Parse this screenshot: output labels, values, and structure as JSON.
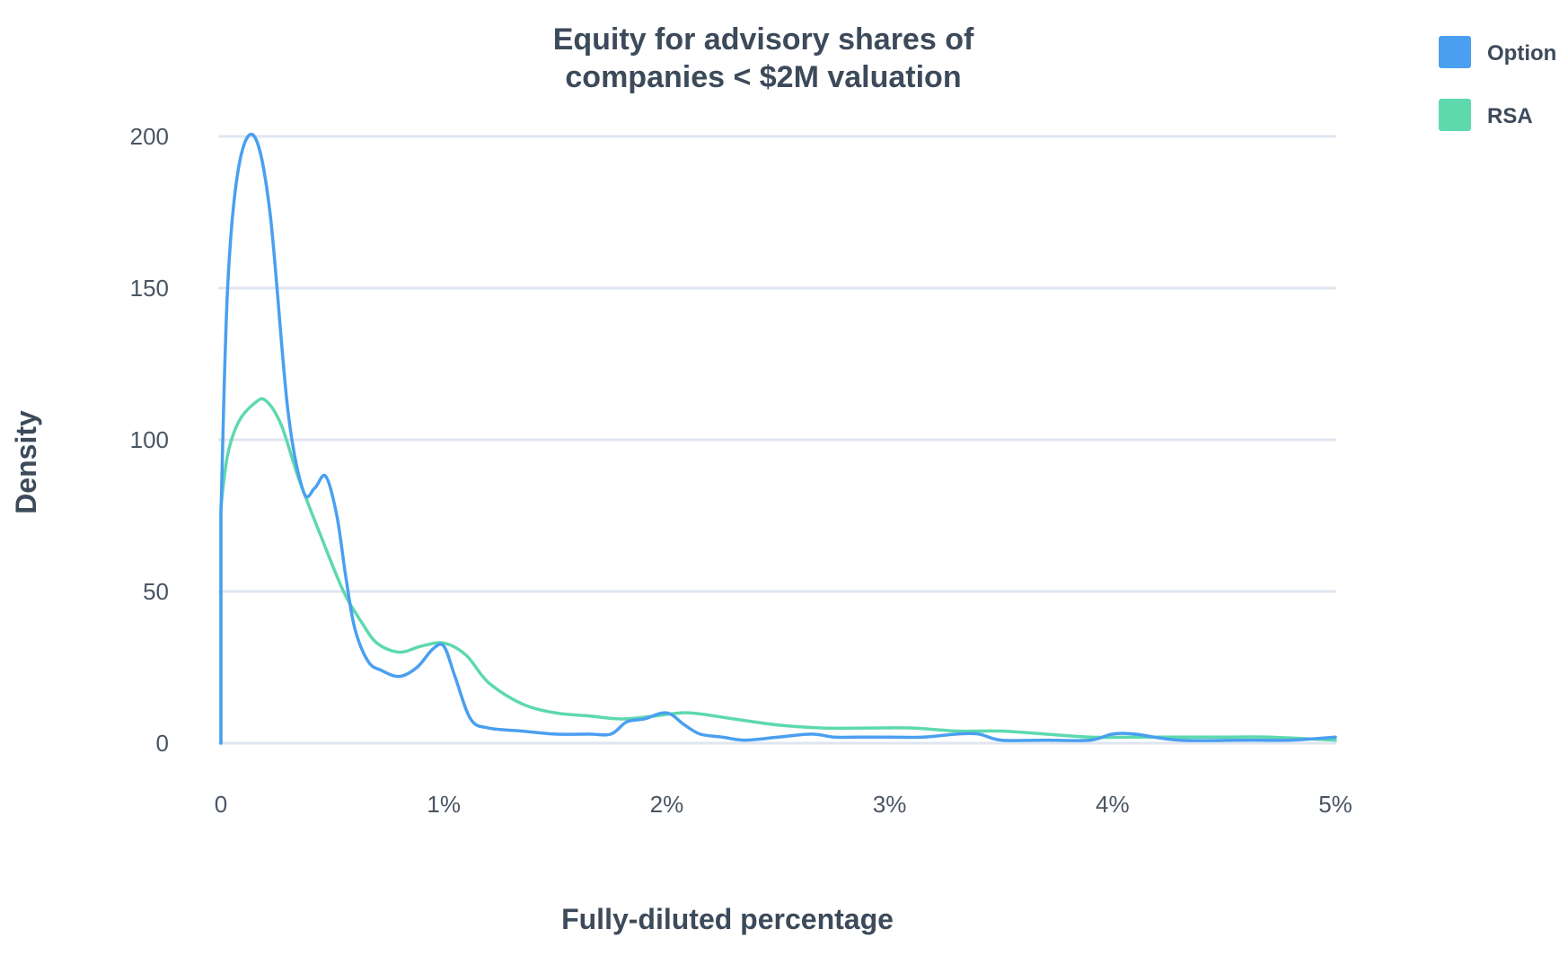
{
  "chart_data": {
    "type": "line",
    "title": [
      "Equity for advisory shares of",
      "companies < $2M valuation"
    ],
    "xlabel": "Fully-diluted percentage",
    "ylabel": "Density",
    "xlim": [
      0,
      5
    ],
    "ylim": [
      0,
      200
    ],
    "x_ticks": [
      {
        "value": 0,
        "label": "0"
      },
      {
        "value": 1,
        "label": "1%"
      },
      {
        "value": 2,
        "label": "2%"
      },
      {
        "value": 3,
        "label": "3%"
      },
      {
        "value": 4,
        "label": "4%"
      },
      {
        "value": 5,
        "label": "5%"
      }
    ],
    "y_ticks": [
      {
        "value": 0,
        "label": "0"
      },
      {
        "value": 50,
        "label": "50"
      },
      {
        "value": 100,
        "label": "100"
      },
      {
        "value": 150,
        "label": "150"
      },
      {
        "value": 200,
        "label": "200"
      }
    ],
    "grid": true,
    "legend_position": "top-right",
    "series": [
      {
        "name": "Option",
        "color": "#4a9ff0",
        "x": [
          0,
          0.03,
          0.08,
          0.15,
          0.22,
          0.3,
          0.37,
          0.42,
          0.47,
          0.52,
          0.56,
          0.6,
          0.66,
          0.72,
          0.8,
          0.88,
          0.95,
          1.0,
          1.05,
          1.12,
          1.2,
          1.35,
          1.5,
          1.65,
          1.75,
          1.82,
          1.9,
          2.0,
          2.08,
          2.15,
          2.25,
          2.35,
          2.5,
          2.65,
          2.75,
          2.85,
          3.0,
          3.15,
          3.3,
          3.4,
          3.5,
          3.7,
          3.9,
          4.0,
          4.1,
          4.3,
          4.6,
          4.8,
          5.0
        ],
        "values": [
          75,
          150,
          190,
          200,
          175,
          110,
          83,
          84,
          88,
          75,
          55,
          38,
          27,
          24,
          22,
          25,
          31,
          32,
          22,
          8,
          5,
          4,
          3,
          3,
          3,
          7,
          8,
          10,
          6,
          3,
          2,
          1,
          2,
          3,
          2,
          2,
          2,
          2,
          3,
          3,
          1,
          1,
          1,
          3,
          3,
          1,
          1,
          1,
          2
        ]
      },
      {
        "name": "RSA",
        "color": "#5dd9ad",
        "x": [
          0,
          0.03,
          0.08,
          0.15,
          0.2,
          0.27,
          0.35,
          0.45,
          0.55,
          0.63,
          0.7,
          0.8,
          0.9,
          1.0,
          1.1,
          1.2,
          1.35,
          1.5,
          1.65,
          1.8,
          1.95,
          2.1,
          2.3,
          2.5,
          2.7,
          2.9,
          3.1,
          3.3,
          3.5,
          3.7,
          3.9,
          4.1,
          4.3,
          4.5,
          4.7,
          5.0
        ],
        "values": [
          78,
          95,
          106,
          112,
          113,
          105,
          87,
          68,
          50,
          40,
          33,
          30,
          32,
          33,
          29,
          20,
          13,
          10,
          9,
          8,
          9,
          10,
          8,
          6,
          5,
          5,
          5,
          4,
          4,
          3,
          2,
          2,
          2,
          2,
          2,
          1
        ]
      }
    ]
  }
}
